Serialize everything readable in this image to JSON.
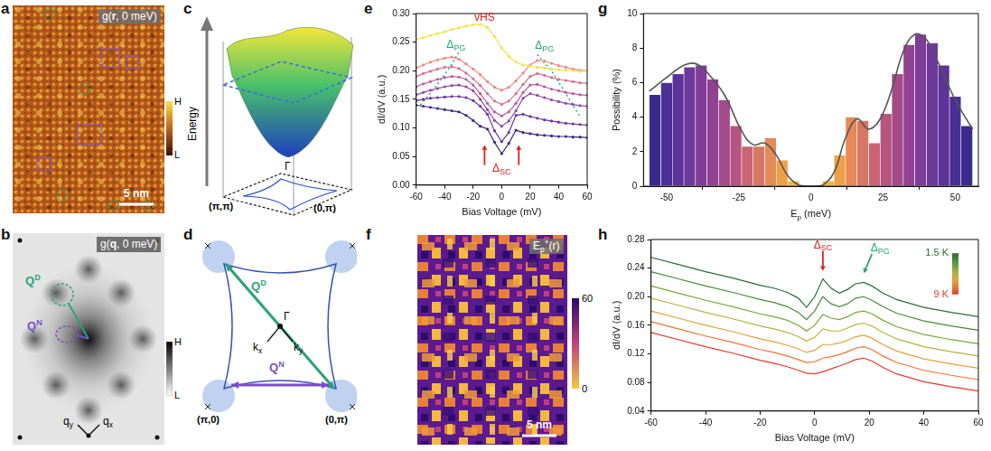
{
  "chart_data": [
    {
      "panel": "e",
      "type": "line",
      "x": [
        -60,
        -55,
        -50,
        -45,
        -40,
        -35,
        -30,
        -25,
        -20,
        -15,
        -10,
        -5,
        0,
        5,
        10,
        15,
        20,
        25,
        30,
        35,
        40,
        45,
        50,
        55,
        60
      ],
      "xlim": [
        -60,
        60
      ],
      "xticks": [
        -60,
        -40,
        -20,
        0,
        20,
        40,
        60
      ],
      "ylim": [
        0,
        0.3
      ],
      "yticks": [
        {
          "value": 0,
          "label": "0.00"
        },
        {
          "value": 0.05,
          "label": "0.05"
        },
        {
          "value": 0.1,
          "label": "0.10"
        },
        {
          "value": 0.15,
          "label": "0.15"
        },
        {
          "value": 0.2,
          "label": "0.20"
        },
        {
          "value": 0.25,
          "label": "0.25"
        },
        {
          "value": 0.3,
          "label": "0.30"
        }
      ],
      "x_label": "Bias Voltage (mV)",
      "y_label": "dI/dV (a.u.)",
      "grid": false,
      "marker": "circle",
      "series": [
        {
          "color": "#f2e34c",
          "values": [
            0.255,
            0.258,
            0.262,
            0.265,
            0.268,
            0.272,
            0.275,
            0.278,
            0.28,
            0.281,
            0.276,
            0.26,
            0.24,
            0.225,
            0.215,
            0.21,
            0.208,
            0.206,
            0.205,
            0.203,
            0.202,
            0.201,
            0.2,
            0.199,
            0.199
          ]
        },
        {
          "color": "#e88a84",
          "values": [
            0.205,
            0.21,
            0.215,
            0.219,
            0.222,
            0.224,
            0.22,
            0.212,
            0.203,
            0.193,
            0.181,
            0.171,
            0.166,
            0.171,
            0.182,
            0.196,
            0.21,
            0.218,
            0.217,
            0.213,
            0.209,
            0.206,
            0.203,
            0.201,
            0.2
          ]
        },
        {
          "color": "#d4708f",
          "values": [
            0.19,
            0.195,
            0.199,
            0.203,
            0.206,
            0.207,
            0.204,
            0.196,
            0.186,
            0.174,
            0.16,
            0.147,
            0.141,
            0.147,
            0.16,
            0.176,
            0.19,
            0.195,
            0.192,
            0.188,
            0.185,
            0.183,
            0.181,
            0.179,
            0.178
          ]
        },
        {
          "color": "#b85b9c",
          "values": [
            0.172,
            0.177,
            0.181,
            0.185,
            0.188,
            0.19,
            0.189,
            0.185,
            0.175,
            0.16,
            0.143,
            0.128,
            0.121,
            0.128,
            0.143,
            0.162,
            0.175,
            0.176,
            0.172,
            0.168,
            0.165,
            0.162,
            0.16,
            0.158,
            0.157
          ]
        },
        {
          "color": "#924aa3",
          "values": [
            0.158,
            0.162,
            0.166,
            0.169,
            0.172,
            0.174,
            0.175,
            0.172,
            0.165,
            0.15,
            0.132,
            0.113,
            0.103,
            0.112,
            0.13,
            0.152,
            0.16,
            0.157,
            0.153,
            0.149,
            0.146,
            0.143,
            0.141,
            0.139,
            0.138
          ]
        },
        {
          "color": "#6a399e",
          "values": [
            0.148,
            0.15,
            0.152,
            0.153,
            0.154,
            0.155,
            0.155,
            0.153,
            0.148,
            0.138,
            0.124,
            0.095,
            0.076,
            0.092,
            0.122,
            0.124,
            0.12,
            0.117,
            0.114,
            0.112,
            0.11,
            0.108,
            0.107,
            0.106,
            0.105
          ]
        },
        {
          "color": "#3e2a80",
          "values": [
            0.14,
            0.138,
            0.136,
            0.134,
            0.132,
            0.13,
            0.128,
            0.122,
            0.113,
            0.103,
            0.098,
            0.075,
            0.055,
            0.073,
            0.096,
            0.092,
            0.09,
            0.088,
            0.087,
            0.086,
            0.085,
            0.085,
            0.084,
            0.084,
            0.083
          ]
        },
        {
          "color": "#2aa37a",
          "line_style": "dotted",
          "marker": "none",
          "x": [
            -57,
            -47,
            -38,
            -30
          ],
          "values": [
            0.14,
            0.17,
            0.2,
            0.232
          ]
        },
        {
          "color": "#2aa37a",
          "line_style": "dotted",
          "marker": "none",
          "x": [
            25,
            35,
            45,
            55
          ],
          "values": [
            0.228,
            0.2,
            0.16,
            0.12
          ]
        }
      ],
      "annotations": [
        {
          "text": "vHS",
          "x": -12,
          "y": 0.292,
          "color": "#e02020"
        },
        {
          "text": "Δ",
          "sub": "PG",
          "x": -32,
          "y": 0.245,
          "color": "#2aa37a"
        },
        {
          "text": "Δ",
          "sub": "PG",
          "x": 30,
          "y": 0.243,
          "color": "#2aa37a"
        },
        {
          "text": "Δ",
          "sub": "SC",
          "x": 0,
          "y": 0.028,
          "color": "#e02020"
        }
      ],
      "arrows": [
        {
          "x": [
            -12,
            -12
          ],
          "y": [
            0.035,
            0.07
          ],
          "color": "#e02020"
        },
        {
          "x": [
            12,
            12
          ],
          "y": [
            0.035,
            0.07
          ],
          "color": "#e02020"
        }
      ]
    },
    {
      "panel": "g",
      "type": "histogram",
      "bins": [
        -56,
        -52,
        -48,
        -44,
        -40,
        -36,
        -32,
        -28,
        -24,
        -20,
        -16,
        -12,
        -8,
        -4,
        0,
        4,
        8,
        12,
        16,
        20,
        24,
        28,
        32,
        36,
        40,
        44,
        48,
        52,
        56
      ],
      "values": [
        5.3,
        6.0,
        6.5,
        6.9,
        7.0,
        6.2,
        5.0,
        3.5,
        2.3,
        2.3,
        2.8,
        1.5,
        0.3,
        0,
        0,
        0.3,
        1.8,
        4.0,
        3.8,
        2.5,
        4.2,
        6.5,
        8.2,
        8.8,
        8.3,
        7.0,
        5.2,
        3.5
      ],
      "colors": [
        "#3b2a8c",
        "#4a2f95",
        "#5c3399",
        "#6e389b",
        "#7f3c98",
        "#914292",
        "#a44a8a",
        "#b6557f",
        "#c86473",
        "#d87665",
        "#e58a55",
        "#eea046",
        "#f3b63a",
        "#f7cc35",
        "#f7cc35",
        "#f3b63a",
        "#eea046",
        "#e58a55",
        "#d87665",
        "#c86473",
        "#b6557f",
        "#a44a8a",
        "#914292",
        "#7f3c98",
        "#6e389b",
        "#5c3399",
        "#4a2f95",
        "#3b2a8c"
      ],
      "xlim": [
        -58,
        58
      ],
      "xticks": [
        -50,
        -25,
        0,
        25,
        50
      ],
      "ylim": [
        0,
        10
      ],
      "yticks": [
        0,
        2,
        4,
        6,
        8,
        10
      ],
      "x_label": {
        "text": "E",
        "sub": "p",
        "after": " (meV)"
      },
      "y_label": "Possibility (%)",
      "grid": false,
      "series": [
        {
          "type": "line",
          "color": "#555555",
          "x": [
            -56,
            -50,
            -44,
            -40,
            -36,
            -30,
            -24,
            -20,
            -16,
            -12,
            -8,
            -4,
            0,
            4,
            8,
            12,
            16,
            20,
            24,
            28,
            32,
            36,
            40,
            44,
            50,
            56
          ],
          "values": [
            5.5,
            6.3,
            7.0,
            7.1,
            6.6,
            5.3,
            3.2,
            2.4,
            2.5,
            1.8,
            0.6,
            0.05,
            0,
            0.05,
            0.8,
            2.8,
            3.9,
            3.3,
            3.9,
            5.6,
            7.8,
            8.8,
            8.5,
            7.2,
            5.0,
            3.3
          ]
        }
      ]
    },
    {
      "panel": "h",
      "type": "line",
      "x": [
        -60,
        -50,
        -40,
        -30,
        -20,
        -15,
        -10,
        -6,
        -3,
        0,
        3,
        6,
        9,
        12,
        15,
        18,
        21,
        25,
        30,
        40,
        50,
        60
      ],
      "xlim": [
        -60,
        60
      ],
      "xticks": [
        -60,
        -40,
        -20,
        0,
        20,
        40,
        60
      ],
      "ylim": [
        0.04,
        0.28
      ],
      "yticks": [
        {
          "value": 0.04,
          "label": "0.04"
        },
        {
          "value": 0.08,
          "label": "0.08"
        },
        {
          "value": 0.12,
          "label": "0.12"
        },
        {
          "value": 0.16,
          "label": "0.16"
        },
        {
          "value": 0.2,
          "label": "0.20"
        },
        {
          "value": 0.24,
          "label": "0.24"
        },
        {
          "value": 0.28,
          "label": "0.28"
        }
      ],
      "x_label": "Bias Voltage (mV)",
      "y_label": "dI/dV (a.u.)",
      "grid": false,
      "series": [
        {
          "color": "#2e6b3a",
          "values": [
            0.255,
            0.245,
            0.235,
            0.226,
            0.216,
            0.212,
            0.206,
            0.198,
            0.185,
            0.2,
            0.225,
            0.212,
            0.205,
            0.21,
            0.218,
            0.22,
            0.215,
            0.205,
            0.196,
            0.185,
            0.178,
            0.172
          ]
        },
        {
          "color": "#4a8a3c",
          "values": [
            0.235,
            0.225,
            0.215,
            0.206,
            0.196,
            0.192,
            0.186,
            0.178,
            0.168,
            0.18,
            0.2,
            0.19,
            0.186,
            0.19,
            0.198,
            0.2,
            0.195,
            0.186,
            0.177,
            0.166,
            0.159,
            0.153
          ]
        },
        {
          "color": "#7aa53c",
          "values": [
            0.215,
            0.205,
            0.195,
            0.186,
            0.176,
            0.172,
            0.167,
            0.16,
            0.152,
            0.16,
            0.175,
            0.17,
            0.168,
            0.172,
            0.178,
            0.18,
            0.176,
            0.167,
            0.158,
            0.147,
            0.14,
            0.134
          ]
        },
        {
          "color": "#b3b43e",
          "values": [
            0.198,
            0.188,
            0.178,
            0.169,
            0.159,
            0.155,
            0.15,
            0.144,
            0.138,
            0.143,
            0.155,
            0.152,
            0.152,
            0.156,
            0.161,
            0.163,
            0.159,
            0.15,
            0.141,
            0.13,
            0.123,
            0.117
          ]
        },
        {
          "color": "#e0a23a",
          "values": [
            0.18,
            0.17,
            0.16,
            0.151,
            0.141,
            0.137,
            0.132,
            0.127,
            0.122,
            0.125,
            0.133,
            0.133,
            0.135,
            0.139,
            0.144,
            0.146,
            0.142,
            0.133,
            0.124,
            0.113,
            0.106,
            0.1
          ]
        },
        {
          "color": "#ec7532",
          "values": [
            0.165,
            0.155,
            0.145,
            0.136,
            0.126,
            0.122,
            0.117,
            0.112,
            0.108,
            0.109,
            0.114,
            0.116,
            0.119,
            0.123,
            0.128,
            0.13,
            0.126,
            0.117,
            0.108,
            0.097,
            0.09,
            0.084
          ]
        },
        {
          "color": "#e03a2c",
          "values": [
            0.15,
            0.14,
            0.13,
            0.121,
            0.111,
            0.107,
            0.102,
            0.097,
            0.093,
            0.092,
            0.095,
            0.099,
            0.103,
            0.107,
            0.112,
            0.114,
            0.11,
            0.101,
            0.092,
            0.081,
            0.074,
            0.068
          ]
        }
      ],
      "annotations": [
        {
          "text": "Δ",
          "sub": "SC",
          "x": 3,
          "y": 0.272,
          "color": "#e02020"
        },
        {
          "text": "Δ",
          "sub": "PG",
          "x": 24,
          "y": 0.268,
          "color": "#2aa37a"
        }
      ],
      "arrows": [
        {
          "x": [
            3,
            3
          ],
          "y": [
            0.264,
            0.236
          ],
          "color": "#e02020"
        },
        {
          "x": [
            21,
            18
          ],
          "y": [
            0.26,
            0.233
          ],
          "color": "#2aa37a"
        }
      ],
      "colorbar": {
        "range": [
          1.5,
          9
        ],
        "ticks": [
          {
            "value": 1.5,
            "label": "1.5 K"
          },
          {
            "value": 9,
            "label": "9 K"
          }
        ]
      }
    }
  ],
  "panels": [
    {
      "panel": "a",
      "title": {
        "text": "g(",
        "bold": "r",
        "after": ", 0 meV)"
      },
      "scale_bar": "5 nm",
      "colorbar": [
        "H",
        "L"
      ]
    },
    {
      "panel": "b",
      "title": {
        "text": "g(",
        "bold": "q",
        "after": ", 0 meV)"
      },
      "labels": [
        {
          "text": "Q",
          "sup": "D"
        },
        {
          "text": "Q",
          "sup": "N"
        }
      ],
      "axes": [
        {
          "text": "q",
          "sub": "y"
        },
        {
          "text": "q",
          "sub": "x"
        }
      ],
      "colorbar": [
        "H",
        "L"
      ]
    },
    {
      "panel": "c",
      "axis_title": "Energy",
      "labels": [
        "Γ",
        "(π,π)",
        "(0,π)"
      ]
    },
    {
      "panel": "d",
      "labels": [
        {
          "text": "Q",
          "sup": "D"
        },
        {
          "text": "Q",
          "sup": "N"
        },
        "Γ",
        {
          "text": "k",
          "sub": "x"
        },
        {
          "text": "k",
          "sub": "y"
        },
        "(π,0)",
        "(0,π)"
      ]
    },
    {
      "panel": "f",
      "title": {
        "text": "E",
        "sub": "p",
        "sup": "+",
        "after": "(r)"
      },
      "scale_bar": "5 nm",
      "colorbar": {
        "range": [
          0,
          60
        ],
        "ticks": [
          0,
          60
        ]
      }
    }
  ]
}
